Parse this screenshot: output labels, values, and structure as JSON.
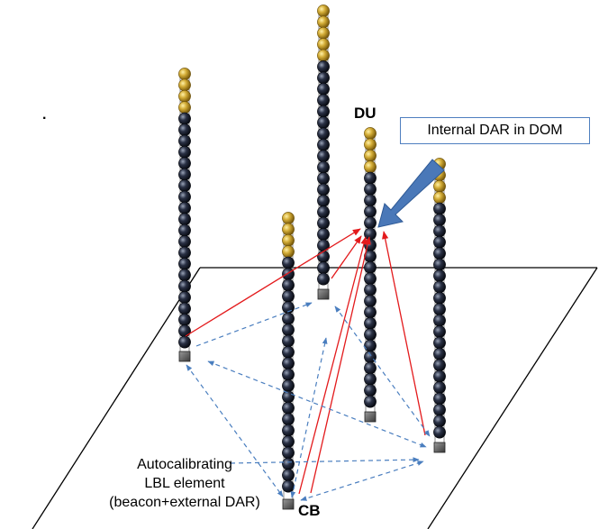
{
  "labels": {
    "du": "DU",
    "cb": "CB",
    "dot": ".",
    "callout": "Internal DAR in DOM",
    "autocal": [
      "Autocalibrating",
      "LBL element",
      "(beacon+external DAR)"
    ]
  },
  "colors": {
    "red_link": "#e31a1c",
    "blue_link": "#4a7ebf",
    "arrow_fill": "#4a78b8",
    "callout_border": "#4f7fbf",
    "gold_sphere": "#c9a227",
    "dark_sphere": "#1e2433",
    "floor_line": "#000000"
  }
}
